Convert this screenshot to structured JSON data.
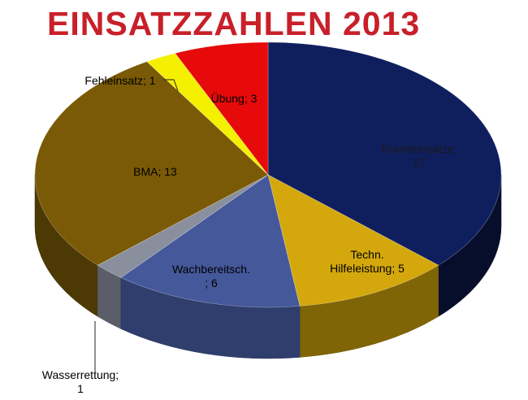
{
  "chart_data": {
    "type": "pie",
    "title": "EINSATZZAHLEN 2013",
    "slices": [
      {
        "name": "Brandeinsätze",
        "value": 17,
        "color": "#0f1f5e",
        "label_lines": [
          "Brandeinsätze;",
          "17"
        ]
      },
      {
        "name": "Techn. Hilfeleistung",
        "value": 5,
        "color": "#d4a80c",
        "label_lines": [
          "Techn.",
          "Hilfeleistung;  5"
        ]
      },
      {
        "name": "Wachbereitsch.",
        "value": 6,
        "color": "#44589a",
        "label_lines": [
          "Wachbereitsch.",
          "; 6"
        ]
      },
      {
        "name": "Wasserrettung",
        "value": 1,
        "color": "#8a8f9e",
        "label_lines": [
          "Wasserrettung;",
          "1"
        ]
      },
      {
        "name": "BMA",
        "value": 13,
        "color": "#7a5a06",
        "label_lines": [
          "BMA; 13"
        ]
      },
      {
        "name": "Fehleinsatz",
        "value": 1,
        "color": "#f4f000",
        "label_lines": [
          "Fehleinsatz;  1"
        ]
      },
      {
        "name": "Übung",
        "value": 3,
        "color": "#e60a0a",
        "label_lines": [
          "Übung;  3"
        ]
      }
    ],
    "legend": "none",
    "style": "3d-pie"
  }
}
